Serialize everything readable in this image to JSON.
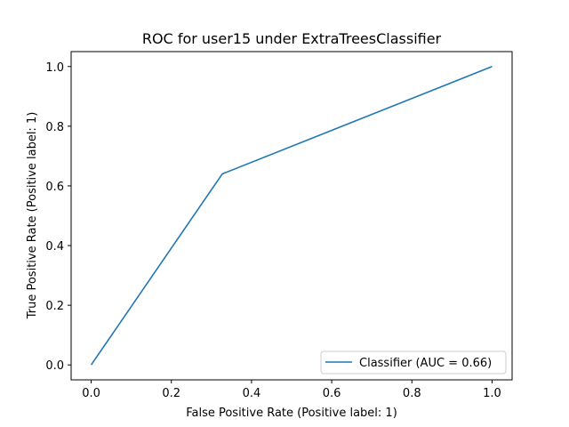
{
  "chart_data": {
    "type": "line",
    "title": "ROC for user15 under ExtraTreesClassifier",
    "xlabel": "False Positive Rate (Positive label: 1)",
    "ylabel": "True Positive Rate (Positive label: 1)",
    "xlim": [
      -0.05,
      1.05
    ],
    "ylim": [
      -0.05,
      1.05
    ],
    "xticks": [
      0.0,
      0.2,
      0.4,
      0.6,
      0.8,
      1.0
    ],
    "yticks": [
      0.0,
      0.2,
      0.4,
      0.6,
      0.8,
      1.0
    ],
    "xtick_labels": [
      "0.0",
      "0.2",
      "0.4",
      "0.6",
      "0.8",
      "1.0"
    ],
    "ytick_labels": [
      "0.0",
      "0.2",
      "0.4",
      "0.6",
      "0.8",
      "1.0"
    ],
    "grid": false,
    "legend_position": "lower-right",
    "series": [
      {
        "name": "Classifier (AUC = 0.66)",
        "color": "#1f77b4",
        "x": [
          0.0,
          0.327,
          1.0
        ],
        "y": [
          0.0,
          0.64,
          1.0
        ]
      }
    ]
  }
}
